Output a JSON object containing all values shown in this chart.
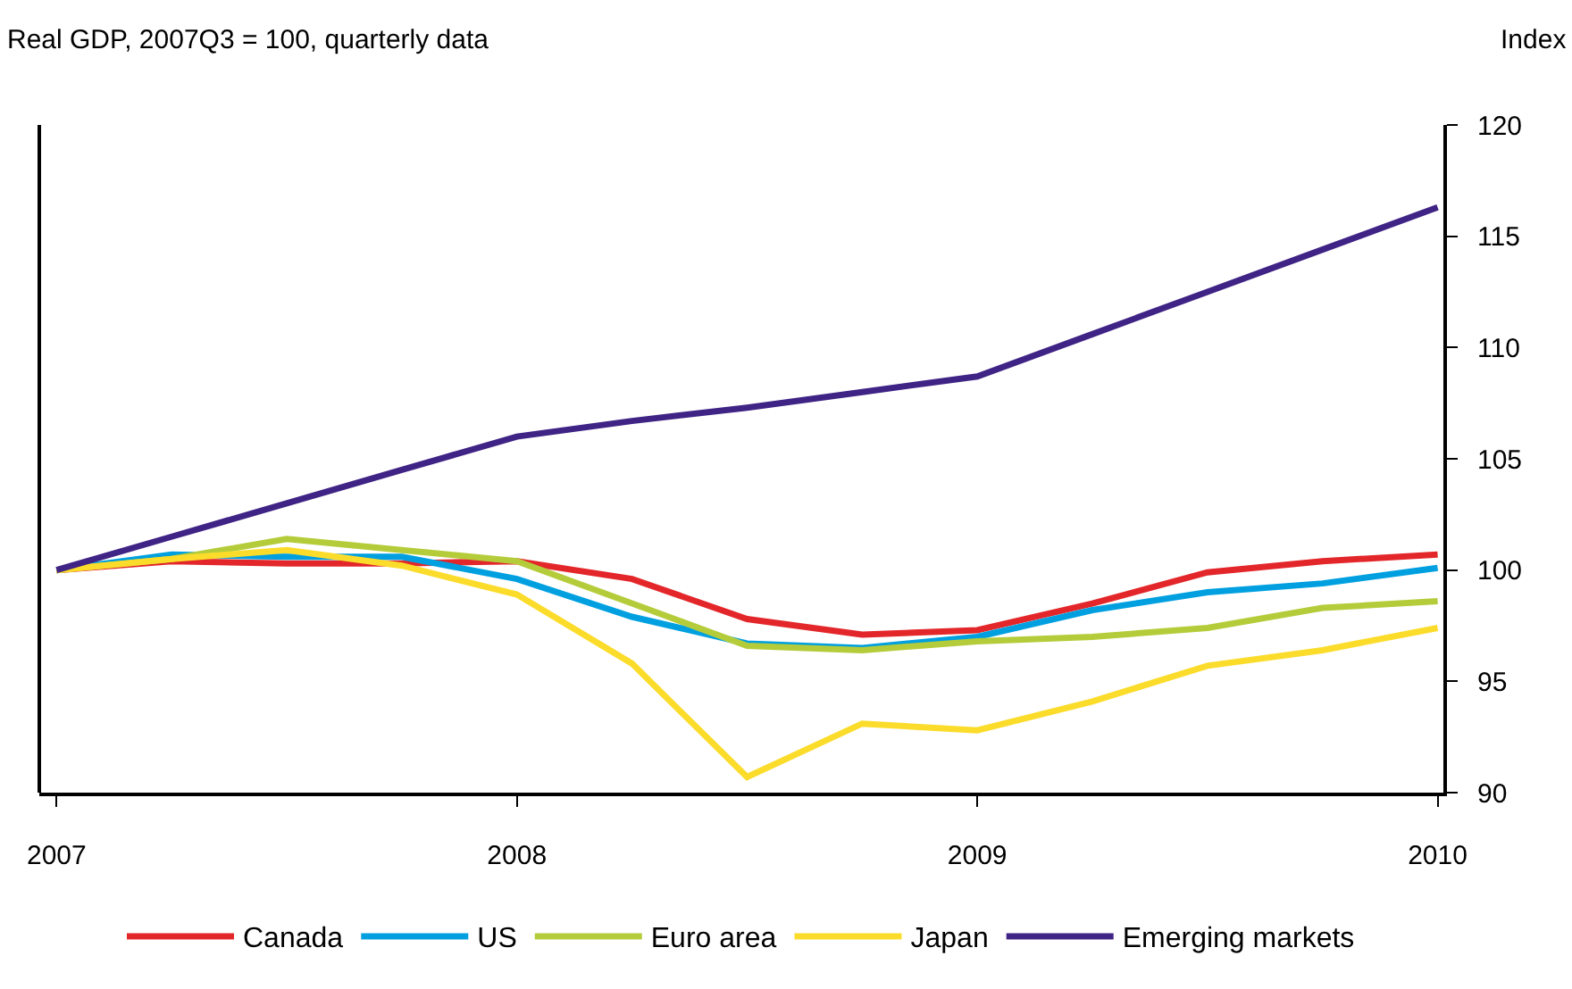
{
  "chart_data": {
    "type": "line",
    "subtitle": "Real GDP, 2007Q3 = 100, quarterly data",
    "ylabel": "Index",
    "categories": [
      "2007",
      null,
      null,
      null,
      "2008",
      null,
      null,
      null,
      "2009",
      null,
      null,
      null,
      "2010"
    ],
    "ylim": [
      90,
      120
    ],
    "yticks": [
      90,
      95,
      100,
      105,
      110,
      115,
      120
    ],
    "legend": "bottom",
    "marker": "none",
    "line_style": "solid",
    "series": [
      {
        "name": "Canada",
        "color": "#e3262a",
        "values": [
          100,
          100.4,
          100.3,
          100.3,
          100.4,
          99.6,
          97.8,
          97.1,
          97.3,
          98.5,
          99.9,
          100.4,
          100.7
        ]
      },
      {
        "name": "US",
        "color": "#00a0e0",
        "values": [
          100,
          100.7,
          100.6,
          100.6,
          99.6,
          97.9,
          96.7,
          96.5,
          97.0,
          98.2,
          99.0,
          99.4,
          100.1
        ]
      },
      {
        "name": "Euro area",
        "color": "#b5cc3a",
        "values": [
          100,
          100.5,
          101.4,
          100.9,
          100.4,
          98.5,
          96.6,
          96.4,
          96.8,
          97.0,
          97.4,
          98.3,
          98.6
        ]
      },
      {
        "name": "Japan",
        "color": "#fbdc2b",
        "values": [
          100,
          100.5,
          100.9,
          100.2,
          98.9,
          95.8,
          90.7,
          93.1,
          92.8,
          94.1,
          95.7,
          96.4,
          97.4
        ]
      },
      {
        "name": "Emerging markets",
        "color": "#3f2385",
        "values": [
          100,
          101.5,
          103.0,
          104.5,
          106.0,
          106.7,
          107.3,
          108.0,
          108.7,
          110.6,
          112.5,
          114.4,
          116.3
        ]
      }
    ]
  }
}
